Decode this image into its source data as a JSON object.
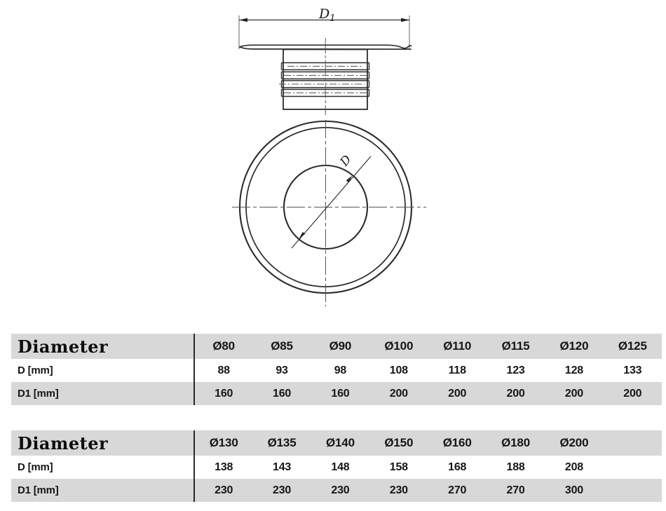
{
  "drawing": {
    "dim_d1_main": "D",
    "dim_d1_sub": "1",
    "dim_d_label": "D",
    "line_color": "#2b2b2b",
    "centerline_color": "#555555"
  },
  "tables": [
    {
      "header_label": "Diameter",
      "columns": [
        "Ø80",
        "Ø85",
        "Ø90",
        "Ø100",
        "Ø110",
        "Ø115",
        "Ø120",
        "Ø125"
      ],
      "rows": [
        {
          "label": "D [mm]",
          "values": [
            "88",
            "93",
            "98",
            "108",
            "118",
            "123",
            "128",
            "133"
          ]
        },
        {
          "label": "D1 [mm]",
          "values": [
            "160",
            "160",
            "160",
            "200",
            "200",
            "200",
            "200",
            "200"
          ]
        }
      ]
    },
    {
      "header_label": "Diameter",
      "columns": [
        "Ø130",
        "Ø135",
        "Ø140",
        "Ø150",
        "Ø160",
        "Ø180",
        "Ø200",
        ""
      ],
      "rows": [
        {
          "label": "D [mm]",
          "values": [
            "138",
            "143",
            "148",
            "158",
            "168",
            "188",
            "208",
            ""
          ]
        },
        {
          "label": "D1 [mm]",
          "values": [
            "230",
            "230",
            "230",
            "230",
            "270",
            "270",
            "300",
            ""
          ]
        }
      ]
    }
  ],
  "colors": {
    "row_gray": "#d8d8d8",
    "row_white": "#ffffff",
    "text": "#161616"
  }
}
